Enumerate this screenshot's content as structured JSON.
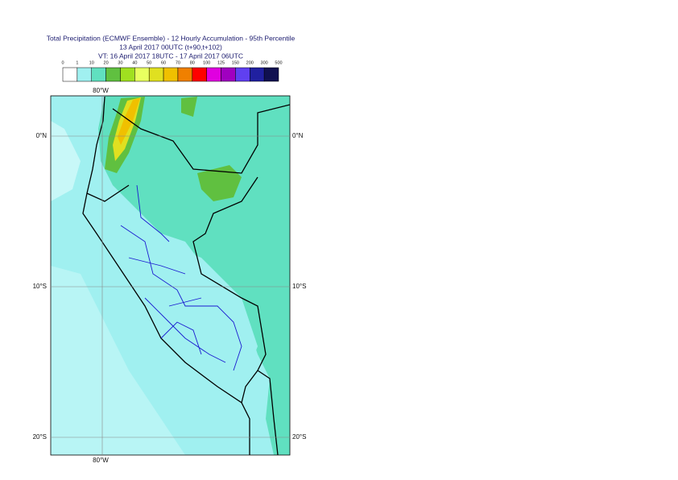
{
  "header": {
    "title": "Total Precipitation (ECMWF Ensemble) - 12 Hourly Accumulation - 95th Percentile",
    "run": "13 April 2017 00UTC (t+90,t+102)",
    "valid": "VT: 16 April 2017 18UTC - 17 April 2017 06UTC"
  },
  "legend": {
    "labels": [
      0,
      1,
      10,
      20,
      30,
      40,
      50,
      60,
      70,
      80,
      100,
      125,
      150,
      200,
      300,
      500
    ],
    "colors": [
      "#ffffff",
      "#a0f0f0",
      "#60e0c0",
      "#60c040",
      "#a0e020",
      "#e8ff60",
      "#e0e020",
      "#f0c000",
      "#f08000",
      "#ff0000",
      "#e000e0",
      "#a000c0",
      "#6040f0",
      "#2020a0",
      "#101050"
    ]
  },
  "map": {
    "lon_top": "80°W",
    "lon_bottom": "80°W",
    "lat_left": [
      "0°N",
      "10°S",
      "20°S"
    ],
    "lat_right": [
      "0°N",
      "10°S",
      "20°S"
    ]
  }
}
